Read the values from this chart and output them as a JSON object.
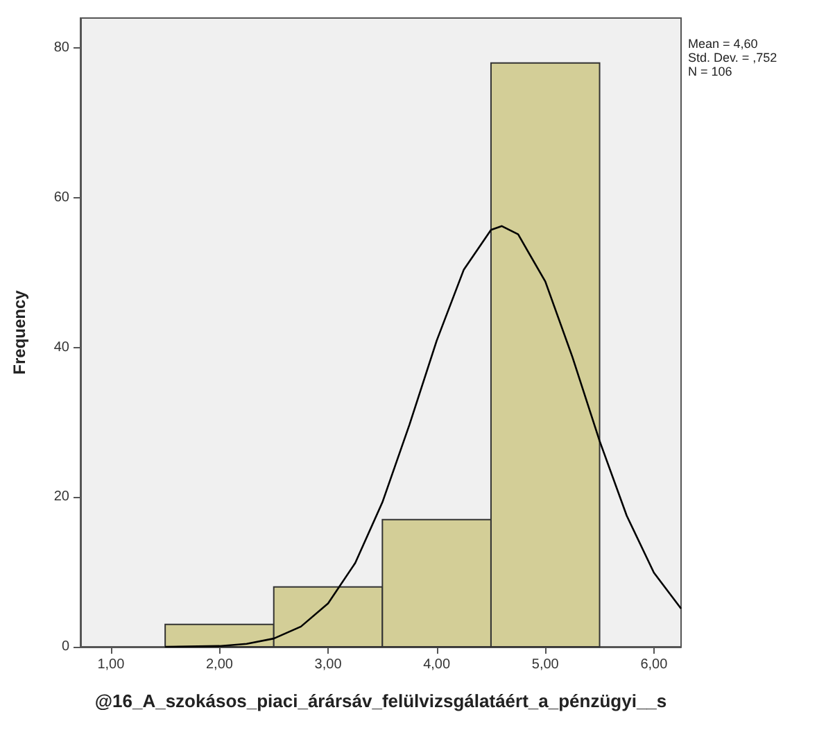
{
  "chart_data": {
    "type": "histogram",
    "xlabel": "@16_A_szokásos_piaci_árársáv_felülvizsgálatáért_a_pénzügyi__s",
    "ylabel": "Frequency",
    "bins": [
      1.5,
      2.5,
      3.5,
      4.5,
      5.5
    ],
    "values": [
      3,
      8,
      17,
      78
    ],
    "color": "#d3ce97",
    "series": [
      {
        "type": "line",
        "color": "#000000",
        "x": [
          1.5,
          2,
          2.25,
          2.5,
          2.75,
          3,
          3.25,
          3.5,
          3.75,
          4,
          4.25,
          4.5,
          4.6,
          4.75,
          5,
          5.25,
          5.5,
          5.75,
          6,
          6.25
        ],
        "values": [
          0,
          0.1,
          0.4,
          1.1,
          2.7,
          5.8,
          11.2,
          19.3,
          29.7,
          40.9,
          50.4,
          55.7,
          56.2,
          55.1,
          48.8,
          38.7,
          27.5,
          17.5,
          9.9,
          5.1
        ]
      }
    ],
    "xlim": [
      0.72,
      6.25
    ],
    "xticks": [
      {
        "value": 1,
        "label": "1,00"
      },
      {
        "value": 2,
        "label": "2,00"
      },
      {
        "value": 3,
        "label": "3,00"
      },
      {
        "value": 4,
        "label": "4,00"
      },
      {
        "value": 5,
        "label": "5,00"
      },
      {
        "value": 6,
        "label": "6,00"
      }
    ],
    "ylim": [
      0,
      84
    ],
    "yticks": [
      0,
      20,
      40,
      60,
      80
    ],
    "grid": false,
    "annotations": [
      "Mean = 4,60",
      "Std. Dev. = ,752",
      "N = 106"
    ]
  }
}
